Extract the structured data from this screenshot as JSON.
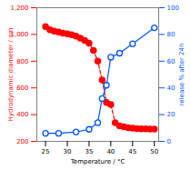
{
  "chart_data": {
    "type": "line",
    "xlabel": "Temperature / °C",
    "ylabel": "Hydrodynamic diameter / nm",
    "y2label": "release % after 24h",
    "xlim": [
      23,
      51
    ],
    "xticks": [
      25,
      30,
      35,
      40,
      45,
      50
    ],
    "ylim": [
      200,
      1200
    ],
    "yticks": [
      200,
      400,
      600,
      800,
      1000,
      1200
    ],
    "y2lim": [
      0,
      100
    ],
    "y2ticks": [
      0,
      20,
      40,
      60,
      80,
      100
    ],
    "grid": false,
    "series": [
      {
        "color": "#ff0000",
        "marker": "circle",
        "line_style": "dashed",
        "x": [
          25,
          26,
          27,
          28,
          29,
          30,
          31,
          32,
          33,
          34,
          35,
          36,
          37,
          38,
          39,
          40,
          41,
          42,
          43,
          44,
          45,
          46,
          47,
          48,
          49,
          50
        ],
        "values": [
          1058,
          1035,
          1025,
          1018,
          1010,
          1005,
          998,
          988,
          972,
          955,
          935,
          880,
          800,
          660,
          490,
          475,
          340,
          315,
          308,
          302,
          298,
          295,
          294,
          293,
          292,
          292
        ]
      },
      {
        "color": "#0055ff",
        "marker": "open_circle",
        "line_style": "solid",
        "axis": "y2",
        "x": [
          25,
          28,
          32,
          35,
          37,
          38,
          39,
          40,
          42,
          45,
          50
        ],
        "values": [
          6,
          6,
          7,
          9,
          14,
          32,
          42,
          63,
          66,
          73,
          85
        ]
      }
    ]
  }
}
